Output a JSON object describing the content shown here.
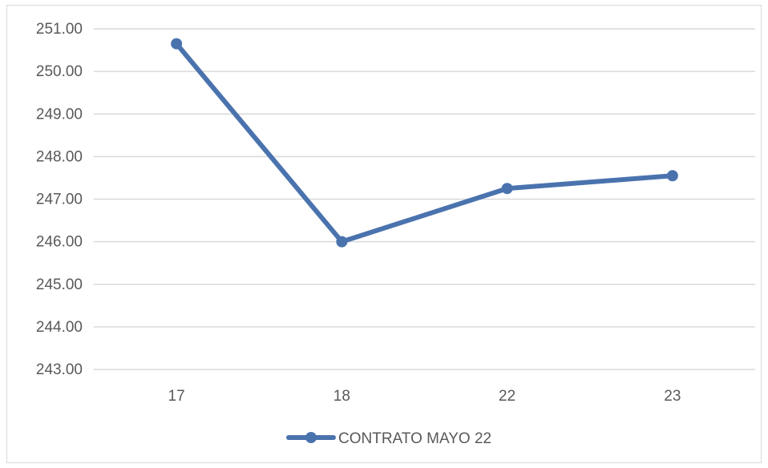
{
  "chart_data": {
    "type": "line",
    "title": "",
    "xlabel": "",
    "ylabel": "",
    "categories": [
      "17",
      "18",
      "22",
      "23"
    ],
    "series": [
      {
        "name": "CONTRATO MAYO 22",
        "values": [
          250.65,
          246.0,
          247.25,
          247.55
        ],
        "color": "#4a73ae"
      }
    ],
    "ylim": [
      243,
      251
    ],
    "yticks": [
      "251.00",
      "250.00",
      "249.00",
      "248.00",
      "247.00",
      "246.00",
      "245.00",
      "244.00",
      "243.00"
    ],
    "grid": true,
    "legend_position": "bottom",
    "gridline_color": "#d9d9d9"
  }
}
